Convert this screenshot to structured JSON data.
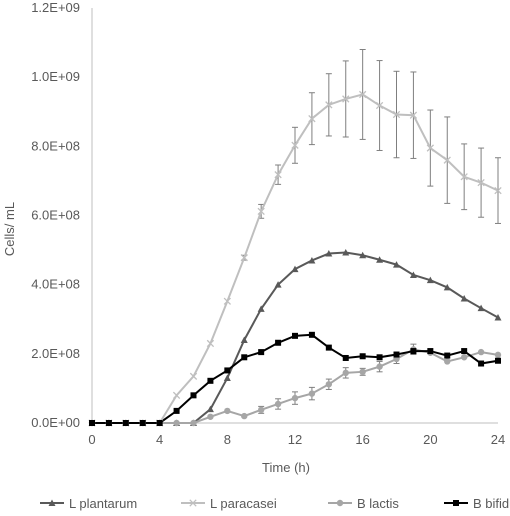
{
  "chart_data": {
    "type": "line",
    "title": "",
    "xlabel": "Time (h)",
    "ylabel": "Cells/ mL",
    "xlim": [
      0,
      24
    ],
    "ylim": [
      0,
      1200000000
    ],
    "x_ticks": [
      0,
      4,
      8,
      12,
      16,
      20,
      24
    ],
    "x_tick_labels": [
      "0",
      "4",
      "8",
      "12",
      "16",
      "20",
      "24"
    ],
    "y_ticks": [
      0,
      200000000,
      400000000,
      600000000,
      800000000,
      1000000000,
      1200000000
    ],
    "y_tick_labels": [
      "0.0E+00",
      "2.0E+08",
      "4.0E+08",
      "6.0E+08",
      "8.0E+08",
      "1.0E+09",
      "1.2E+09"
    ],
    "grid": false,
    "legend_position": "bottom",
    "x": [
      0,
      1,
      2,
      3,
      4,
      5,
      6,
      7,
      8,
      9,
      10,
      11,
      12,
      13,
      14,
      15,
      16,
      17,
      18,
      19,
      20,
      21,
      22,
      23,
      24
    ],
    "series": [
      {
        "name": "L plantarum",
        "marker": "triangle",
        "color": "#595959",
        "values": [
          0,
          0,
          0,
          0,
          0,
          0,
          0,
          40000000,
          130000000,
          240000000,
          330000000,
          400000000,
          445000000,
          470000000,
          490000000,
          493000000,
          485000000,
          472000000,
          458000000,
          428000000,
          413000000,
          392000000,
          360000000,
          332000000,
          305000000
        ],
        "errors": [
          0,
          0,
          0,
          0,
          0,
          0,
          0,
          0,
          0,
          0,
          0,
          0,
          0,
          0,
          0,
          0,
          0,
          0,
          0,
          0,
          0,
          0,
          0,
          0,
          0
        ]
      },
      {
        "name": "L paracasei",
        "marker": "x",
        "color": "#bfbfbf",
        "values": [
          0,
          0,
          0,
          0,
          0,
          80000000,
          135000000,
          230000000,
          352000000,
          478000000,
          612000000,
          718000000,
          803000000,
          880000000,
          920000000,
          937000000,
          950000000,
          918000000,
          892000000,
          890000000,
          795000000,
          760000000,
          712000000,
          695000000,
          672000000
        ],
        "errors": [
          0,
          0,
          0,
          0,
          0,
          0,
          0,
          0,
          0,
          7000000,
          20000000,
          28000000,
          52000000,
          75000000,
          90000000,
          110000000,
          130000000,
          130000000,
          125000000,
          125000000,
          110000000,
          125000000,
          95000000,
          100000000,
          95000000
        ]
      },
      {
        "name": "B lactis",
        "marker": "circle",
        "color": "#a6a6a6",
        "values": [
          0,
          0,
          0,
          0,
          0,
          0,
          0,
          18000000,
          35000000,
          20000000,
          38000000,
          55000000,
          72000000,
          85000000,
          112000000,
          145000000,
          148000000,
          163000000,
          185000000,
          213000000,
          203000000,
          178000000,
          190000000,
          205000000,
          197000000
        ],
        "errors": [
          0,
          0,
          0,
          0,
          0,
          0,
          0,
          0,
          0,
          0,
          10000000,
          15000000,
          18000000,
          18000000,
          15000000,
          15000000,
          10000000,
          15000000,
          13000000,
          15000000,
          0,
          0,
          0,
          0,
          0
        ]
      },
      {
        "name": "B bifidum",
        "marker": "square",
        "color": "#000000",
        "values": [
          0,
          0,
          0,
          0,
          0,
          35000000,
          80000000,
          122000000,
          152000000,
          190000000,
          205000000,
          232000000,
          252000000,
          255000000,
          218000000,
          188000000,
          193000000,
          190000000,
          198000000,
          208000000,
          208000000,
          195000000,
          208000000,
          172000000,
          180000000
        ],
        "errors": [
          0,
          0,
          0,
          0,
          0,
          0,
          0,
          0,
          0,
          0,
          0,
          0,
          0,
          0,
          0,
          0,
          0,
          0,
          0,
          0,
          0,
          0,
          0,
          0,
          0
        ]
      }
    ]
  }
}
